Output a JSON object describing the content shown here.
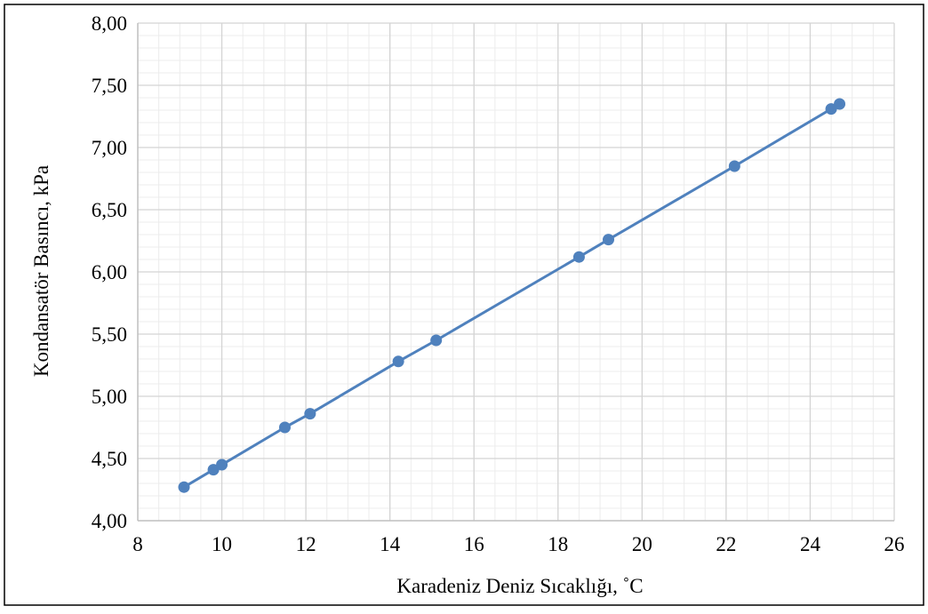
{
  "chart_data": {
    "type": "scatter",
    "title": "",
    "xlabel": "Karadeniz Deniz Sıcaklığı, ˚C",
    "ylabel": "Kondansatör Basıncı, kPa",
    "xlim": [
      8,
      26
    ],
    "ylim": [
      4.0,
      8.0
    ],
    "x_ticks": [
      8,
      10,
      12,
      14,
      16,
      18,
      20,
      22,
      24,
      26
    ],
    "x_tick_labels": [
      "8",
      "10",
      "12",
      "14",
      "16",
      "18",
      "20",
      "22",
      "24",
      "26"
    ],
    "y_ticks": [
      4.0,
      4.5,
      5.0,
      5.5,
      6.0,
      6.5,
      7.0,
      7.5,
      8.0
    ],
    "y_tick_labels": [
      "4,00",
      "4,50",
      "5,00",
      "5,50",
      "6,00",
      "6,50",
      "7,00",
      "7,50",
      "8,00"
    ],
    "x_minor_step": 0.5,
    "y_minor_step": 0.1,
    "grid": {
      "major": true,
      "minor": true
    },
    "legend": "none",
    "series": [
      {
        "x": [
          9.1,
          9.8,
          10.0,
          11.5,
          12.1,
          14.2,
          15.1,
          18.5,
          19.2,
          22.2,
          24.5,
          24.7
        ],
        "y": [
          4.27,
          4.41,
          4.45,
          4.75,
          4.86,
          5.28,
          5.45,
          6.12,
          6.26,
          6.85,
          7.31,
          7.35
        ],
        "color": "#4f81bd",
        "line": true,
        "markers": true
      }
    ],
    "colors": {
      "series": "#4f81bd",
      "major_grid": "#d4d4d4",
      "minor_grid": "#ececec",
      "axis": "#bfbfbf",
      "frame": "#000000"
    }
  }
}
